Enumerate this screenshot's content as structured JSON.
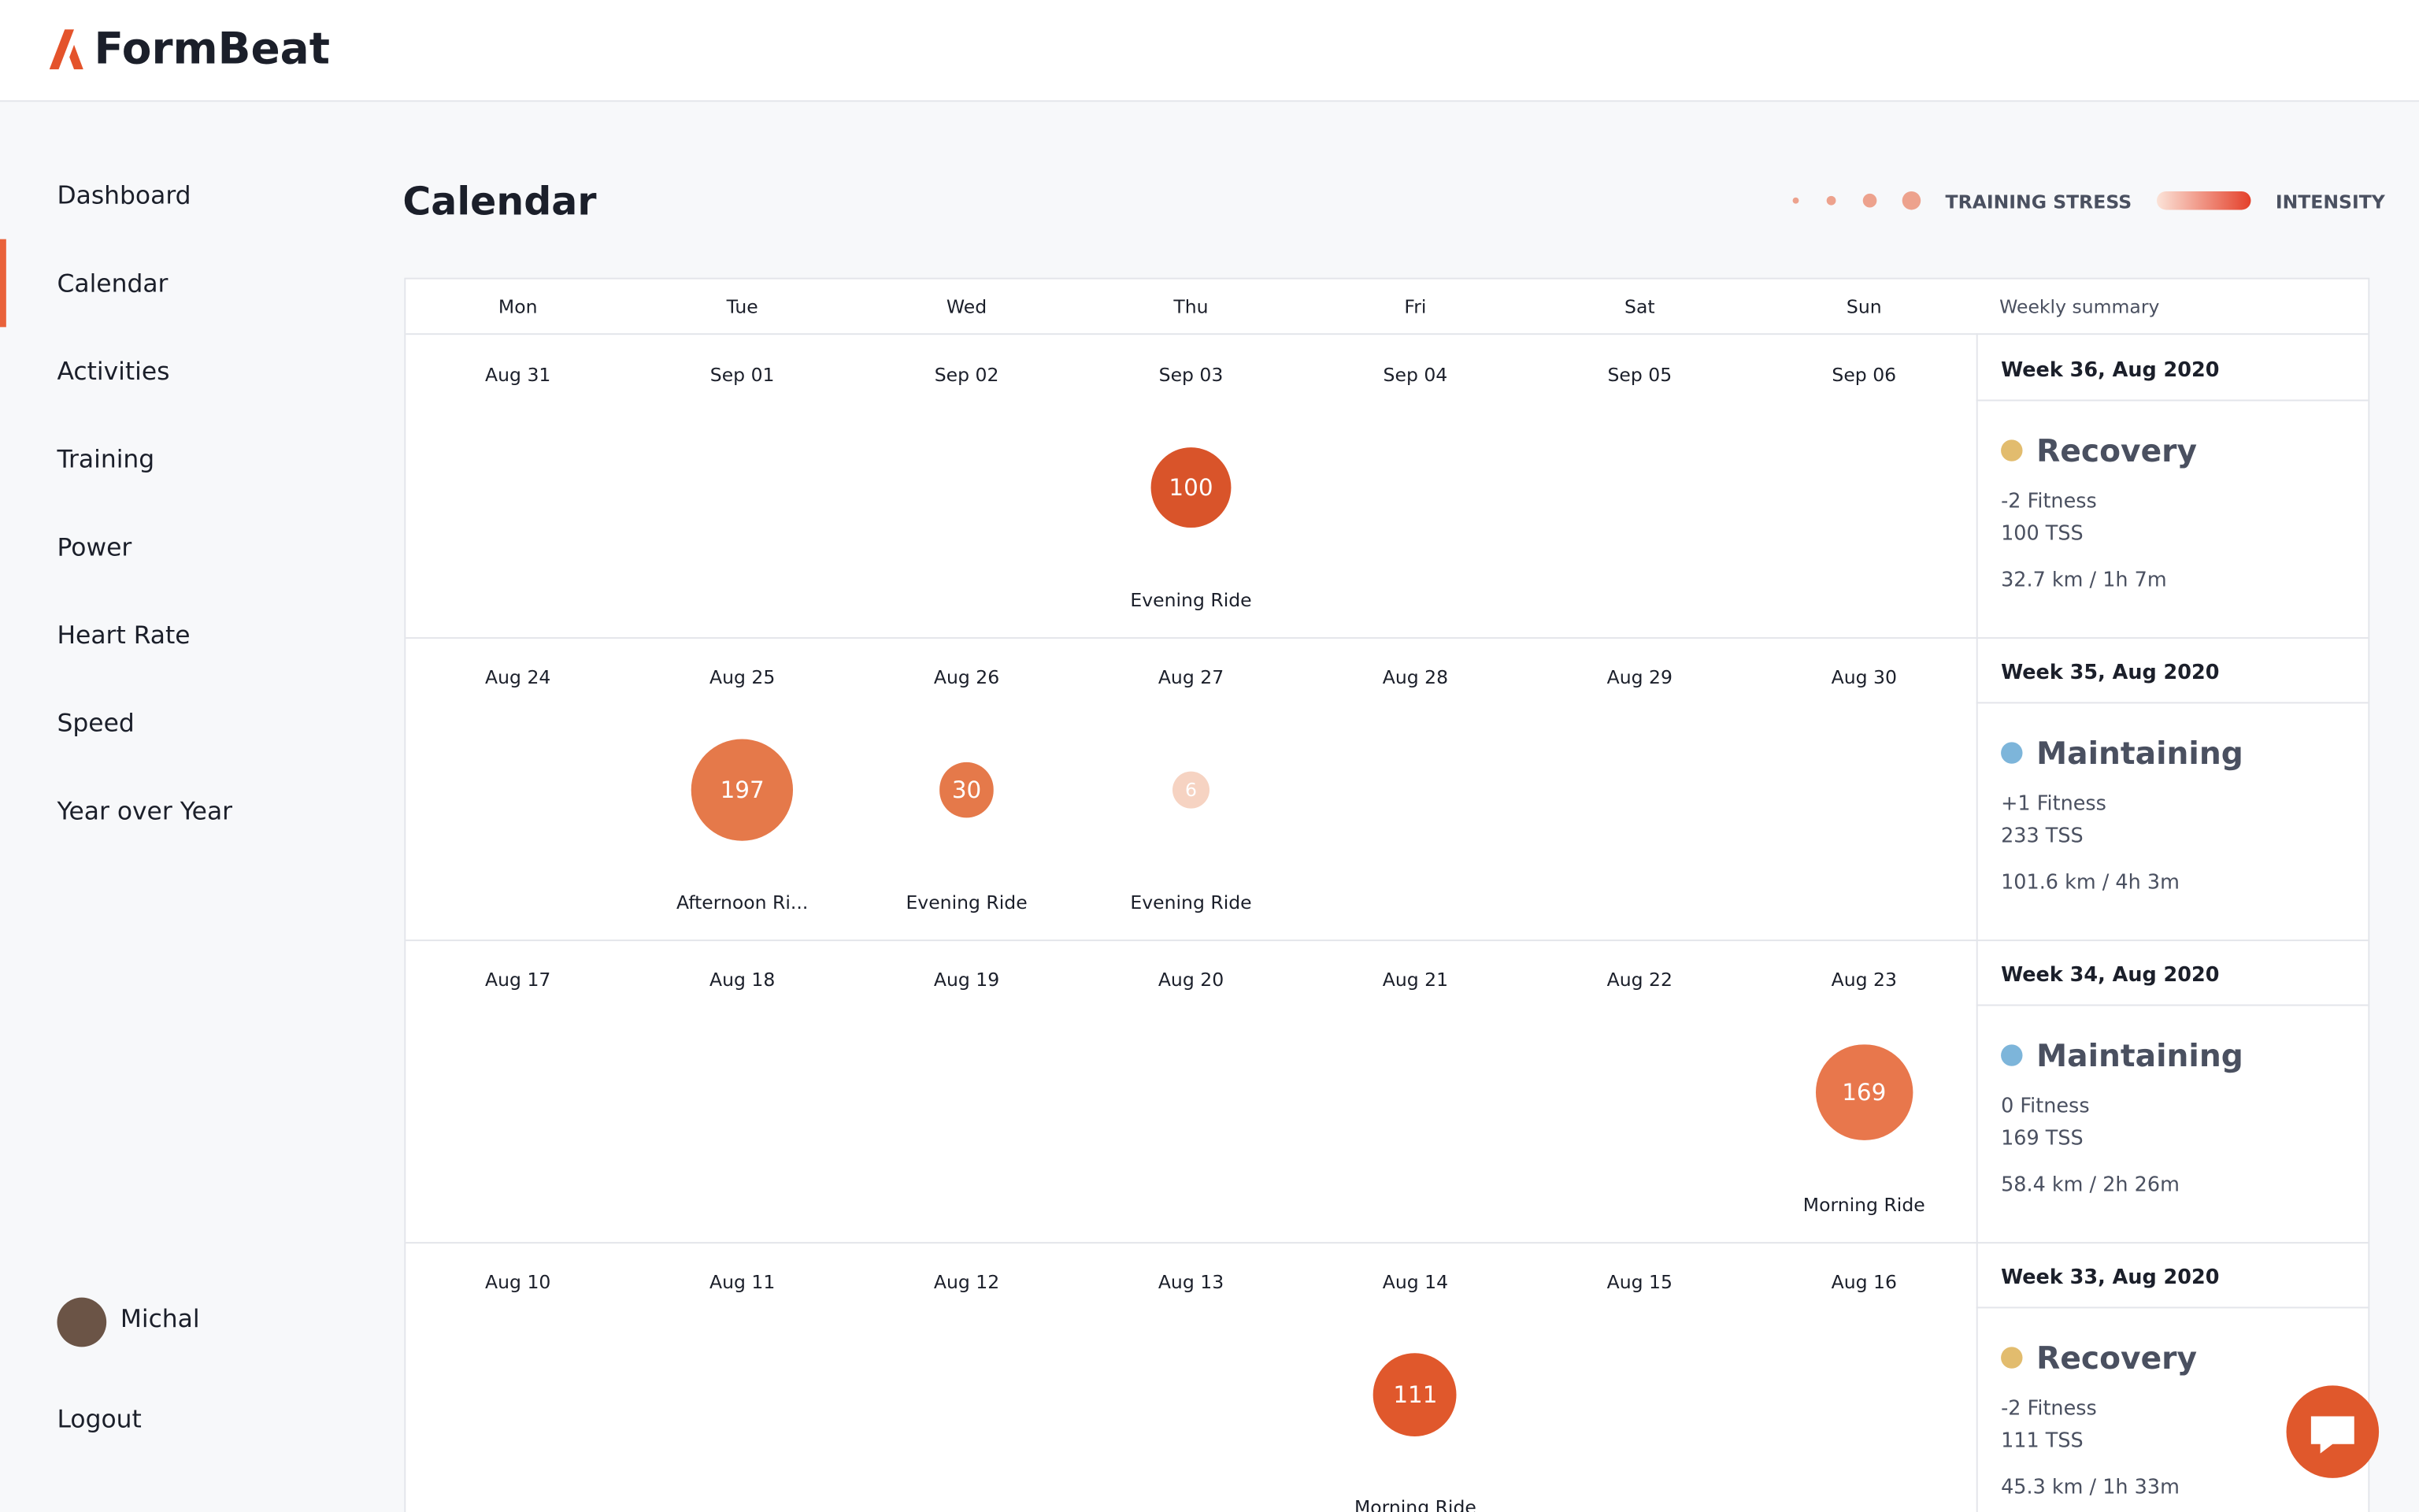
{
  "header": {
    "logo": "FormBeat"
  },
  "nav": [
    "Dashboard",
    "Calendar",
    "Activities",
    "Training",
    "Power",
    "Heart Rate",
    "Speed",
    "Year over Year"
  ],
  "user": {
    "name": "Michal",
    "logout": "Logout"
  },
  "page": {
    "title": "Calendar",
    "legend": {
      "stress": "TRAINING STRESS",
      "intensity": "INTENSITY"
    }
  },
  "calendar": {
    "weekdays": [
      "Mon",
      "Tue",
      "Wed",
      "Thu",
      "Fri",
      "Sat",
      "Sun"
    ],
    "summary_header": "Weekly summary",
    "weeks": [
      {
        "days": [
          "Aug 31",
          "Sep 01",
          "Sep 02",
          "Sep 03",
          "Sep 04",
          "Sep 05",
          "Sep 06"
        ],
        "activities": [
          {
            "day": 3,
            "tss": 100,
            "name": "Evening Ride",
            "color": "#d9542a"
          }
        ],
        "summary": {
          "title": "Week 36, Aug 2020",
          "status": "Recovery",
          "status_color": "#e2bc6e",
          "fitness": "-2 Fitness",
          "tss": "100 TSS",
          "distance": "32.7 km / 1h 7m"
        }
      },
      {
        "days": [
          "Aug 24",
          "Aug 25",
          "Aug 26",
          "Aug 27",
          "Aug 28",
          "Aug 29",
          "Aug 30"
        ],
        "activities": [
          {
            "day": 1,
            "tss": 197,
            "name": "Afternoon Ri...",
            "color": "#e5794a"
          },
          {
            "day": 2,
            "tss": 30,
            "name": "Evening Ride",
            "color": "#e5794a"
          },
          {
            "day": 3,
            "tss": 6,
            "name": "Evening Ride",
            "color": "#f6d3c2"
          }
        ],
        "summary": {
          "title": "Week 35, Aug 2020",
          "status": "Maintaining",
          "status_color": "#7db5da",
          "fitness": "+1 Fitness",
          "tss": "233 TSS",
          "distance": "101.6 km / 4h 3m"
        }
      },
      {
        "days": [
          "Aug 17",
          "Aug 18",
          "Aug 19",
          "Aug 20",
          "Aug 21",
          "Aug 22",
          "Aug 23"
        ],
        "activities": [
          {
            "day": 6,
            "tss": 169,
            "name": "Morning Ride",
            "color": "#e8774c"
          }
        ],
        "summary": {
          "title": "Week 34, Aug 2020",
          "status": "Maintaining",
          "status_color": "#7db5da",
          "fitness": "0 Fitness",
          "tss": "169 TSS",
          "distance": "58.4 km / 2h 26m"
        }
      },
      {
        "days": [
          "Aug 10",
          "Aug 11",
          "Aug 12",
          "Aug 13",
          "Aug 14",
          "Aug 15",
          "Aug 16"
        ],
        "activities": [
          {
            "day": 4,
            "tss": 111,
            "name": "Morning Ride",
            "color": "#e0582c"
          }
        ],
        "summary": {
          "title": "Week 33, Aug 2020",
          "status": "Recovery",
          "status_color": "#e2bc6e",
          "fitness": "-2 Fitness",
          "tss": "111 TSS",
          "distance": "45.3 km / 1h 33m"
        }
      }
    ]
  }
}
